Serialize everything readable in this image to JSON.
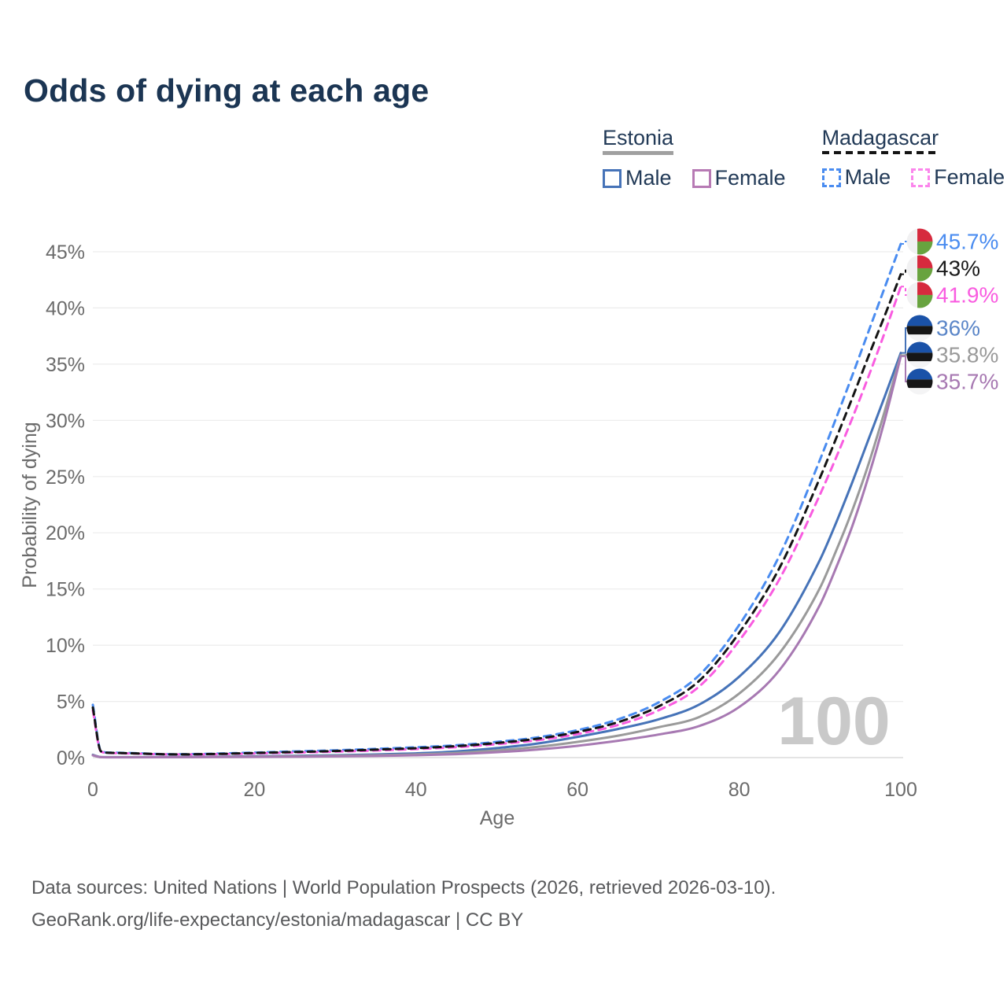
{
  "title": "Odds of dying at each age",
  "legend": {
    "estonia": {
      "name": "Estonia",
      "male_label": "Male",
      "female_label": "Female",
      "male_color": "#4673b8",
      "female_color": "#b77ab4",
      "line_color": "#a0a0a0",
      "line_style": "solid"
    },
    "madagascar": {
      "name": "Madagascar",
      "male_label": "Male",
      "female_label": "Female",
      "male_color": "#4a8cf0",
      "female_color": "#fb86ec",
      "line_color": "#141414",
      "line_style": "dashed"
    }
  },
  "watermark": "100",
  "source": {
    "line1": "Data sources: United Nations | World Population Prospects (2026, retrieved 2026-03-10).",
    "line2": "GeoRank.org/life-expectancy/estonia/madagascar | CC BY"
  },
  "chart_data": {
    "type": "line",
    "title": "Odds of dying at each age",
    "xlabel": "Age",
    "ylabel": "Probability of dying",
    "xlim": [
      0,
      100
    ],
    "ylim": [
      0,
      46
    ],
    "grid": "horizontal",
    "x_ticks": [
      0,
      20,
      40,
      60,
      80,
      100
    ],
    "y_ticks": [
      0,
      5,
      10,
      15,
      20,
      25,
      30,
      35,
      40,
      45
    ],
    "y_tick_suffix": "%",
    "legend_position": "top-right",
    "x": [
      0,
      1,
      2,
      5,
      10,
      15,
      20,
      25,
      30,
      35,
      40,
      45,
      50,
      55,
      60,
      65,
      70,
      75,
      80,
      85,
      90,
      92,
      94,
      96,
      98,
      100
    ],
    "series": [
      {
        "name": "Madagascar Male",
        "country": "Madagascar",
        "sex": "male",
        "color": "#4a8cf0",
        "label_color": "#4a8cf0",
        "dash": true,
        "flag": "madagascar",
        "end_label": "45.7%",
        "values": [
          4.7,
          0.6,
          0.45,
          0.4,
          0.3,
          0.35,
          0.45,
          0.55,
          0.65,
          0.78,
          0.92,
          1.1,
          1.4,
          1.8,
          2.45,
          3.4,
          4.9,
          7.3,
          11.8,
          18.0,
          26.5,
          30.2,
          34.0,
          37.9,
          41.8,
          45.7
        ]
      },
      {
        "name": "Madagascar",
        "country": "Madagascar",
        "sex": "both",
        "color": "#141414",
        "label_color": "#1a1a1a",
        "dash": true,
        "flag": "madagascar",
        "end_label": "43%",
        "values": [
          4.45,
          0.57,
          0.43,
          0.38,
          0.29,
          0.32,
          0.41,
          0.5,
          0.59,
          0.71,
          0.84,
          1.02,
          1.3,
          1.68,
          2.28,
          3.15,
          4.55,
          6.8,
          11.1,
          16.9,
          24.9,
          28.4,
          32.0,
          35.7,
          39.3,
          43.0
        ]
      },
      {
        "name": "Madagascar Female",
        "country": "Madagascar",
        "sex": "female",
        "color": "#f95ce0",
        "label_color": "#f95ce0",
        "dash": true,
        "flag": "madagascar",
        "end_label": "41.9%",
        "values": [
          4.2,
          0.54,
          0.41,
          0.36,
          0.28,
          0.3,
          0.37,
          0.45,
          0.53,
          0.64,
          0.76,
          0.93,
          1.2,
          1.55,
          2.1,
          2.9,
          4.2,
          6.3,
          10.4,
          15.9,
          23.4,
          26.7,
          30.2,
          33.9,
          37.8,
          41.9
        ]
      },
      {
        "name": "Estonia Male",
        "country": "Estonia",
        "sex": "male",
        "color": "#4673b8",
        "label_color": "#5b86c8",
        "dash": false,
        "flag": "estonia",
        "end_label": "36%",
        "values": [
          0.25,
          0.05,
          0.04,
          0.04,
          0.05,
          0.08,
          0.12,
          0.16,
          0.21,
          0.28,
          0.38,
          0.55,
          0.85,
          1.25,
          1.85,
          2.55,
          3.4,
          4.7,
          7.2,
          11.2,
          17.6,
          20.9,
          24.5,
          28.3,
          32.1,
          36.0
        ]
      },
      {
        "name": "Estonia",
        "country": "Estonia",
        "sex": "both",
        "color": "#9a9a9a",
        "label_color": "#9a9a9a",
        "dash": false,
        "flag": "estonia",
        "end_label": "35.8%",
        "values": [
          0.22,
          0.04,
          0.035,
          0.035,
          0.04,
          0.06,
          0.09,
          0.12,
          0.16,
          0.21,
          0.29,
          0.42,
          0.64,
          0.95,
          1.4,
          1.95,
          2.7,
          3.6,
          5.7,
          9.3,
          15.1,
          18.4,
          22.0,
          26.1,
          30.8,
          35.8
        ]
      },
      {
        "name": "Estonia Female",
        "country": "Estonia",
        "sex": "female",
        "color": "#a779b2",
        "label_color": "#a779b2",
        "dash": false,
        "flag": "estonia",
        "end_label": "35.7%",
        "values": [
          0.2,
          0.04,
          0.03,
          0.03,
          0.035,
          0.05,
          0.06,
          0.08,
          0.11,
          0.15,
          0.21,
          0.31,
          0.48,
          0.72,
          1.05,
          1.5,
          2.05,
          2.8,
          4.5,
          7.8,
          13.6,
          16.9,
          20.6,
          25.0,
          30.0,
          35.7
        ]
      }
    ],
    "flag_colors": {
      "estonia": {
        "blue": "#1a52a8",
        "black": "#161616",
        "white": "#f4f4f5"
      },
      "madagascar": {
        "white": "#f1f1f2",
        "red": "#d62a3e",
        "green": "#68a33f"
      }
    }
  }
}
